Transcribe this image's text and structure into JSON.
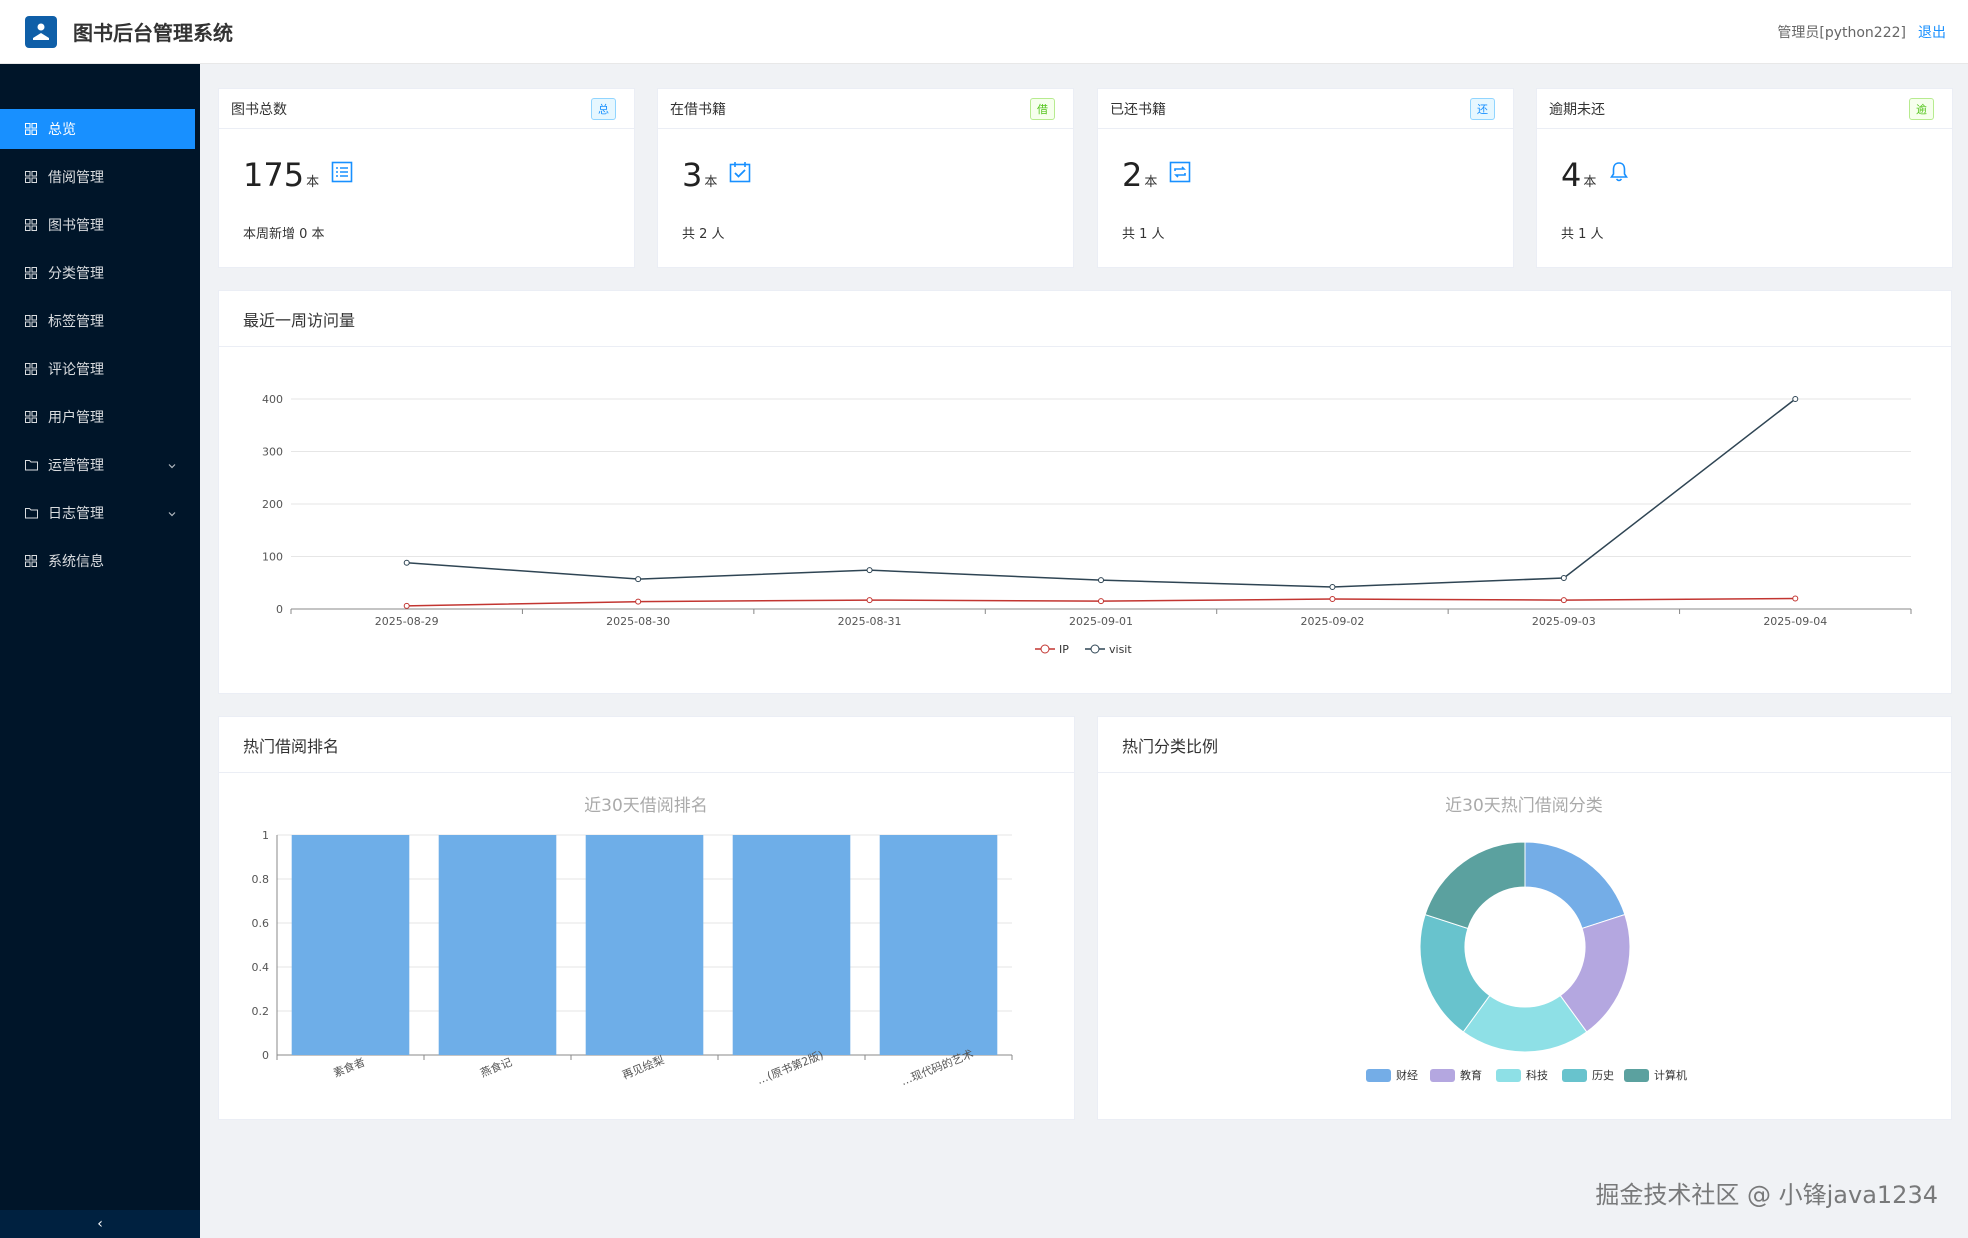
{
  "header": {
    "title": "图书后台管理系统",
    "admin": "管理员[python222]",
    "logout": "退出"
  },
  "sidebar": {
    "items": [
      {
        "label": "总览",
        "icon": "grid-icon",
        "active": true
      },
      {
        "label": "借阅管理",
        "icon": "grid-icon"
      },
      {
        "label": "图书管理",
        "icon": "grid-icon"
      },
      {
        "label": "分类管理",
        "icon": "grid-icon"
      },
      {
        "label": "标签管理",
        "icon": "grid-icon"
      },
      {
        "label": "评论管理",
        "icon": "grid-icon"
      },
      {
        "label": "用户管理",
        "icon": "grid-icon"
      },
      {
        "label": "运营管理",
        "icon": "folder-icon",
        "expandable": true
      },
      {
        "label": "日志管理",
        "icon": "folder-icon",
        "expandable": true
      },
      {
        "label": "系统信息",
        "icon": "grid-icon"
      }
    ],
    "collapse_symbol": "‹"
  },
  "stats": [
    {
      "title": "图书总数",
      "badge": "总",
      "value": "175",
      "unit": "本",
      "note": "本周新增 0 本",
      "icon": "list-icon",
      "badge_color": "blue"
    },
    {
      "title": "在借书籍",
      "badge": "借",
      "value": "3",
      "unit": "本",
      "note": "共 2 人",
      "icon": "calendar-check-icon",
      "badge_color": "green"
    },
    {
      "title": "已还书籍",
      "badge": "还",
      "value": "2",
      "unit": "本",
      "note": "共 1 人",
      "icon": "return-icon",
      "badge_color": "blue"
    },
    {
      "title": "逾期未还",
      "badge": "逾",
      "value": "4",
      "unit": "本",
      "note": "共 1 人",
      "icon": "bell-icon",
      "badge_color": "green"
    }
  ],
  "panels": {
    "visits_title": "最近一周访问量",
    "borrow_title": "热门借阅排名",
    "category_title": "热门分类比例"
  },
  "watermark": "掘金技术社区 @ 小锋java1234",
  "colors": {
    "primary": "#1890ff",
    "sidebar_bg": "#001529",
    "bar": "#6eaee8",
    "ip_line": "#c23531",
    "visit_line": "#2f4554"
  },
  "chart_data": [
    {
      "type": "line",
      "x": [
        "2025-08-29",
        "2025-08-30",
        "2025-08-31",
        "2025-09-01",
        "2025-09-02",
        "2025-09-03",
        "2025-09-04"
      ],
      "series": [
        {
          "name": "IP",
          "values": [
            6,
            14,
            17,
            15,
            19,
            17,
            20
          ],
          "color": "#c23531"
        },
        {
          "name": "visit",
          "values": [
            88,
            57,
            74,
            55,
            42,
            59,
            400
          ],
          "color": "#2f4554"
        }
      ],
      "yticks": [
        0,
        100,
        200,
        300,
        400
      ],
      "ylim": [
        0,
        400
      ],
      "grid": true,
      "legend": "bottom-center"
    },
    {
      "type": "bar",
      "title": "近30天借阅排名",
      "categories": [
        "素食者",
        "燕食记",
        "再见绘梨",
        "…(原书第2版)",
        "…现代码的艺术"
      ],
      "values": [
        1,
        1,
        1,
        1,
        1
      ],
      "yticks": [
        "0",
        "0.2",
        "0.4",
        "0.6",
        "0.8",
        "1"
      ],
      "ylim": [
        0,
        1
      ],
      "color": "#6eaee8"
    },
    {
      "type": "pie",
      "title": "近30天热门借阅分类",
      "donut": true,
      "labels": [
        "财经",
        "教育",
        "科技",
        "历史",
        "计算机"
      ],
      "values": [
        1,
        1,
        1,
        1,
        1
      ],
      "colors": [
        "#74ade7",
        "#b4a7e0",
        "#8ee0e6",
        "#68c3cd",
        "#5ba19f"
      ],
      "legend": "bottom-center"
    }
  ]
}
